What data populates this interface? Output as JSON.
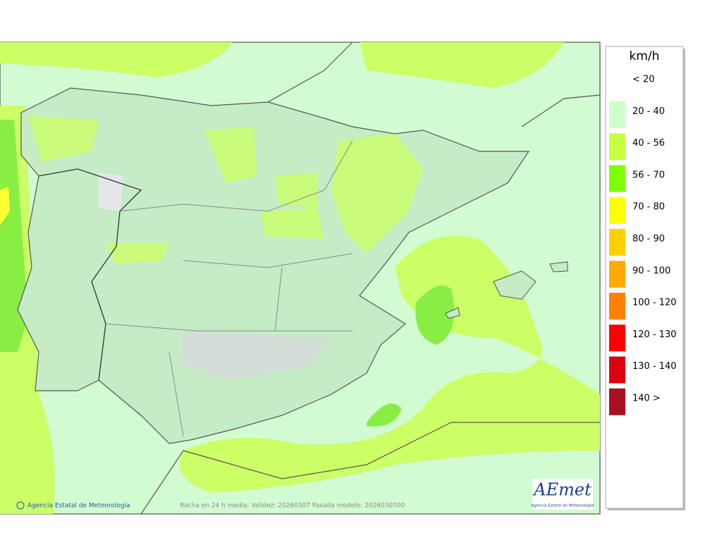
{
  "legend": {
    "unit": "km/h",
    "items": [
      {
        "label": "< 20",
        "color": "#ffffff"
      },
      {
        "label": "20 - 40",
        "color": "#ccffcc"
      },
      {
        "label": "40 - 56",
        "color": "#c6ff44"
      },
      {
        "label": "56 - 70",
        "color": "#80ff00"
      },
      {
        "label": "70 - 80",
        "color": "#ffff00"
      },
      {
        "label": "80 - 90",
        "color": "#ffd000"
      },
      {
        "label": "90 - 100",
        "color": "#ffaa00"
      },
      {
        "label": "100 - 120",
        "color": "#ff8000"
      },
      {
        "label": "120 - 130",
        "color": "#ff0000"
      },
      {
        "label": "130 - 140",
        "color": "#dd0010"
      },
      {
        "label": "140 >",
        "color": "#aa1020"
      }
    ]
  },
  "footer": {
    "credit": "Agencia Estatal de Meteorología",
    "caption": "Racha en 24 h media. Validez: 20260307 Pasada modelo: 2026030700"
  },
  "logo": {
    "name": "AEmet",
    "subtitle": "Agencia Estatal de Meteorología"
  }
}
